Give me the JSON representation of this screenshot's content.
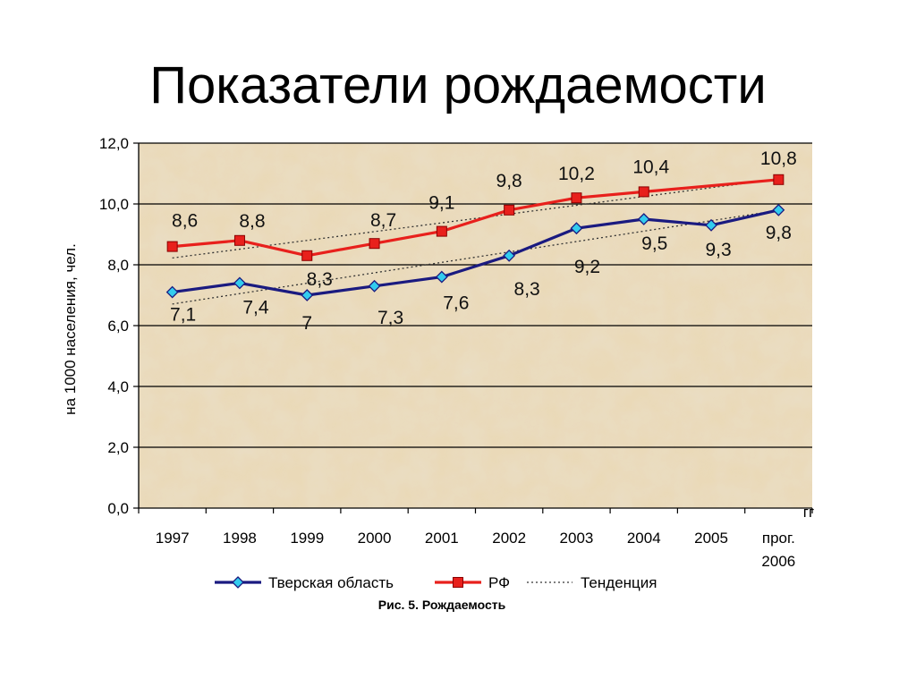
{
  "slide": {
    "title": "Показатели рождаемости"
  },
  "chart_data": {
    "type": "line",
    "title": "",
    "ylabel": "на 1000 населения, чел.",
    "xlabel": "",
    "x_unit_label": "гг",
    "ylim": [
      0,
      12
    ],
    "ytick_values": [
      0,
      2,
      4,
      6,
      8,
      10,
      12
    ],
    "ytick_labels": [
      "0,0",
      "2,0",
      "4,0",
      "6,0",
      "8,0",
      "10,0",
      "12,0"
    ],
    "categories": [
      "1997",
      "1998",
      "1999",
      "2000",
      "2001",
      "2002",
      "2003",
      "2004",
      "2005",
      "прог. 2006"
    ],
    "category_label_lines": [
      [
        "1997"
      ],
      [
        "1998"
      ],
      [
        "1999"
      ],
      [
        "2000"
      ],
      [
        "2001"
      ],
      [
        "2002"
      ],
      [
        "2003"
      ],
      [
        "2004"
      ],
      [
        "2005"
      ],
      [
        "прог.",
        "2006"
      ]
    ],
    "grid": true,
    "legend_position": "bottom",
    "series": [
      {
        "name": "Тверская область",
        "color": "#1a1a80",
        "marker_color": "#33ccee",
        "marker": "diamond",
        "values": [
          7.1,
          7.4,
          7.0,
          7.3,
          7.6,
          8.3,
          9.2,
          9.5,
          9.3,
          9.8
        ],
        "labels": [
          "7,1",
          "7,4",
          "7",
          "7,3",
          "7,6",
          "8,3",
          "9,2",
          "9,5",
          "9,3",
          "9,8"
        ]
      },
      {
        "name": "РФ",
        "color": "#e8201c",
        "marker_color": "#e8201c",
        "marker": "square",
        "values": [
          8.6,
          8.8,
          8.3,
          8.7,
          9.1,
          9.8,
          10.2,
          10.4,
          null,
          10.8
        ],
        "labels": [
          "8,6",
          "8,8",
          "8,3",
          "8,7",
          "9,1",
          "9,8",
          "10,2",
          "10,4",
          "",
          "10,8"
        ]
      }
    ],
    "trend": {
      "name": "Тенденция",
      "style": "dotted",
      "color": "#333333"
    },
    "caption": "Рис. 5. Рождаемость"
  }
}
